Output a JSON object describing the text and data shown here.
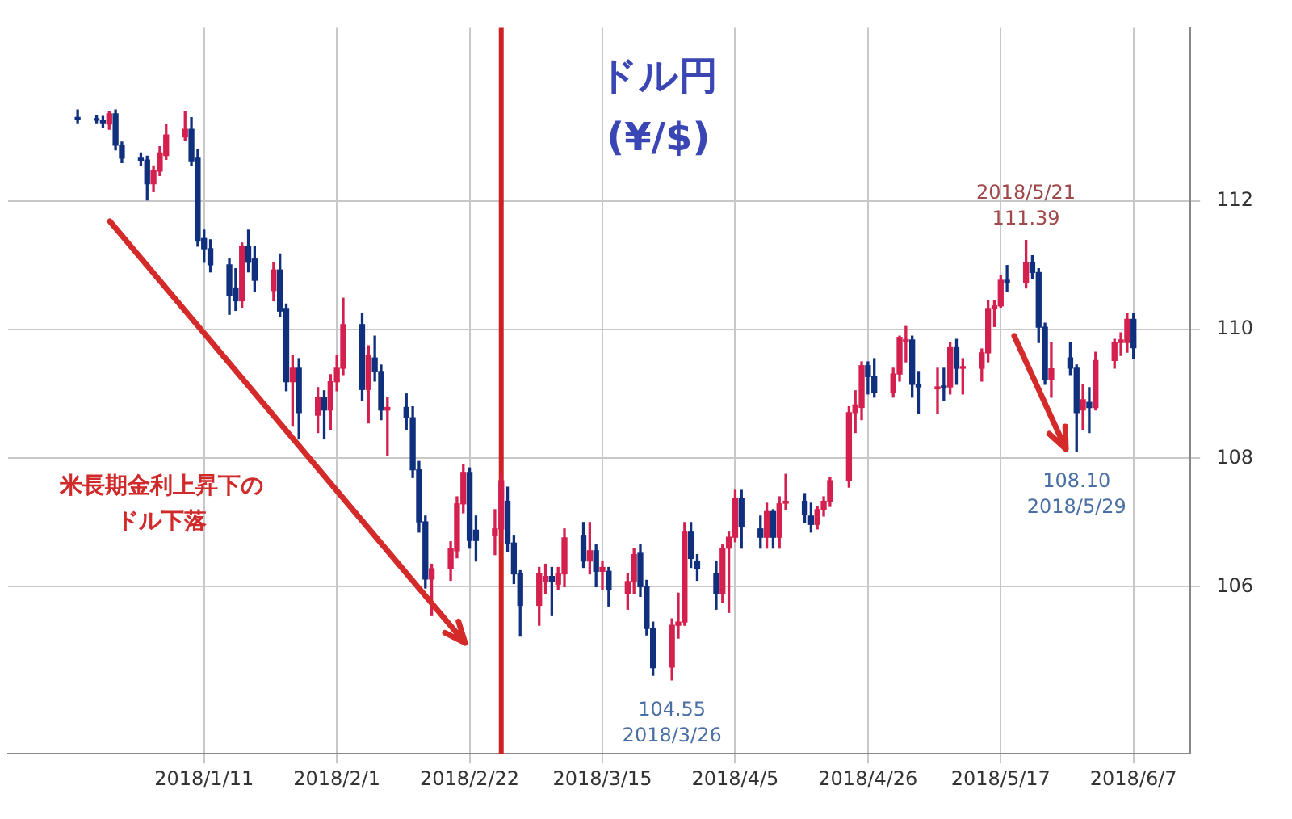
{
  "chart_data": {
    "type": "candlestick",
    "title": "ドル円",
    "subtitle": "(¥/$)",
    "annotations": [
      {
        "text": "2018/5/21\n111.39",
        "x": "2018-05-21",
        "y": 111.39
      },
      {
        "text": "108.10\n2018/5/29",
        "x": "2018-05-29",
        "y": 108.1
      },
      {
        "text": "104.55\n2018/3/26",
        "x": "2018-03-26",
        "y": 104.55
      },
      "米長期金利上昇下の",
      "ドル下落"
    ],
    "xlim": [
      "2017-12-11",
      "2018-06-16"
    ],
    "xticks": [
      {
        "value": "2018-01-11",
        "label": "2018/1/11"
      },
      {
        "value": "2018-02-01",
        "label": "2018/2/1"
      },
      {
        "value": "2018-02-22",
        "label": "2018/2/22"
      },
      {
        "value": "2018-03-15",
        "label": "2018/3/15"
      },
      {
        "value": "2018-04-05",
        "label": "2018/4/5"
      },
      {
        "value": "2018-04-26",
        "label": "2018/4/26"
      },
      {
        "value": "2018-05-17",
        "label": "2018/5/17"
      },
      {
        "value": "2018-06-07",
        "label": "2018/6/7"
      }
    ],
    "ylim": [
      103.4,
      114.7
    ],
    "yticks": [
      106,
      108,
      110,
      112
    ],
    "grid": true,
    "legend": false,
    "ref_lines": [
      {
        "axis": "x",
        "value": "2018-02-27",
        "color": "#cc2222"
      }
    ],
    "series": [
      {
        "color": "#d4204e",
        "x": [
          "2017-12-27",
          "2018-01-03",
          "2018-01-04",
          "2018-01-05",
          "2018-01-08",
          "2018-01-17",
          "2018-01-22",
          "2018-01-25",
          "2018-01-29",
          "2018-01-31",
          "2018-02-01",
          "2018-02-02",
          "2018-02-06",
          "2018-02-09",
          "2018-02-16",
          "2018-02-19",
          "2018-02-20",
          "2018-02-21",
          "2018-02-26",
          "2018-02-27",
          "2018-03-05",
          "2018-03-06",
          "2018-03-08",
          "2018-03-09",
          "2018-03-13",
          "2018-03-15",
          "2018-03-19",
          "2018-03-20",
          "2018-03-26",
          "2018-03-27",
          "2018-03-28",
          "2018-04-03",
          "2018-04-04",
          "2018-04-05",
          "2018-04-10",
          "2018-04-12",
          "2018-04-13",
          "2018-04-18",
          "2018-04-19",
          "2018-04-20",
          "2018-04-23",
          "2018-04-24",
          "2018-04-25",
          "2018-04-30",
          "2018-05-01",
          "2018-05-02",
          "2018-05-07",
          "2018-05-09",
          "2018-05-11",
          "2018-05-14",
          "2018-05-15",
          "2018-05-16",
          "2018-05-17",
          "2018-05-21",
          "2018-05-25",
          "2018-05-30",
          "2018-06-01",
          "2018-06-04",
          "2018-06-05",
          "2018-06-06"
        ],
        "ohlc": [
          [
            113.2,
            113.4,
            113.12,
            113.36
          ],
          [
            112.27,
            112.55,
            112.15,
            112.47
          ],
          [
            112.47,
            112.85,
            112.4,
            112.75
          ],
          [
            112.71,
            113.2,
            112.65,
            113.03
          ],
          [
            113.0,
            113.4,
            112.95,
            113.12
          ],
          [
            110.45,
            111.35,
            110.35,
            111.3
          ],
          [
            110.61,
            111.05,
            110.45,
            110.93
          ],
          [
            109.19,
            109.6,
            108.5,
            109.4
          ],
          [
            108.67,
            109.1,
            108.4,
            108.95
          ],
          [
            108.75,
            109.3,
            108.45,
            109.19
          ],
          [
            109.19,
            109.6,
            109.05,
            109.4
          ],
          [
            109.4,
            110.49,
            109.3,
            110.08
          ],
          [
            109.07,
            109.75,
            108.55,
            109.6
          ],
          [
            108.75,
            108.95,
            108.05,
            108.79
          ],
          [
            106.12,
            106.35,
            105.55,
            106.28
          ],
          [
            106.28,
            106.7,
            106.1,
            106.6
          ],
          [
            106.56,
            107.4,
            106.45,
            107.29
          ],
          [
            107.29,
            107.9,
            107.15,
            107.78
          ],
          [
            106.8,
            107.2,
            106.5,
            106.9
          ],
          [
            106.9,
            107.75,
            106.7,
            107.65
          ],
          [
            105.71,
            106.3,
            105.4,
            106.2
          ],
          [
            106.08,
            106.35,
            105.9,
            106.16
          ],
          [
            106.04,
            106.3,
            105.95,
            106.2
          ],
          [
            106.2,
            106.9,
            106.0,
            106.76
          ],
          [
            106.4,
            107.0,
            106.2,
            106.56
          ],
          [
            106.24,
            106.4,
            105.95,
            106.3
          ],
          [
            105.9,
            106.2,
            105.65,
            106.08
          ],
          [
            106.08,
            106.6,
            105.9,
            106.5
          ],
          [
            104.75,
            105.5,
            104.55,
            105.4
          ],
          [
            105.4,
            105.9,
            105.2,
            105.45
          ],
          [
            105.45,
            107.0,
            105.4,
            106.85
          ],
          [
            105.9,
            106.65,
            105.75,
            106.6
          ],
          [
            106.6,
            106.85,
            105.6,
            106.77
          ],
          [
            106.77,
            107.5,
            106.7,
            107.37
          ],
          [
            106.77,
            107.3,
            106.6,
            107.17
          ],
          [
            106.77,
            107.4,
            106.6,
            107.29
          ],
          [
            107.3,
            107.75,
            107.2,
            107.33
          ],
          [
            106.97,
            107.25,
            106.9,
            107.2
          ],
          [
            107.2,
            107.4,
            107.1,
            107.33
          ],
          [
            107.33,
            107.7,
            107.25,
            107.65
          ],
          [
            107.65,
            108.8,
            107.55,
            108.71
          ],
          [
            108.71,
            109.05,
            108.4,
            108.83
          ],
          [
            108.79,
            109.5,
            108.6,
            109.44
          ],
          [
            109.03,
            109.4,
            108.95,
            109.31
          ],
          [
            109.31,
            109.9,
            109.2,
            109.88
          ],
          [
            109.82,
            110.05,
            109.5,
            109.84
          ],
          [
            109.08,
            109.4,
            108.7,
            109.11
          ],
          [
            109.11,
            109.8,
            109.0,
            109.72
          ],
          [
            109.4,
            109.55,
            109.0,
            109.42
          ],
          [
            109.4,
            109.7,
            109.2,
            109.64
          ],
          [
            109.64,
            110.45,
            109.5,
            110.33
          ],
          [
            110.33,
            110.45,
            110.05,
            110.37
          ],
          [
            110.37,
            110.85,
            110.35,
            110.77
          ],
          [
            110.73,
            111.39,
            110.65,
            111.05
          ],
          [
            109.23,
            109.8,
            108.95,
            109.39
          ],
          [
            108.75,
            109.15,
            108.45,
            108.91
          ],
          [
            108.79,
            109.65,
            108.75,
            109.52
          ],
          [
            109.52,
            109.85,
            109.4,
            109.8
          ],
          [
            109.8,
            109.95,
            109.6,
            109.84
          ],
          [
            109.8,
            110.25,
            109.65,
            110.16
          ]
        ]
      },
      {
        "color": "#10307e",
        "x": [
          "2017-12-22",
          "2017-12-25",
          "2017-12-26",
          "2017-12-28",
          "2017-12-29",
          "2018-01-01",
          "2018-01-02",
          "2018-01-09",
          "2018-01-10",
          "2018-01-11",
          "2018-01-12",
          "2018-01-15",
          "2018-01-16",
          "2018-01-18",
          "2018-01-19",
          "2018-01-23",
          "2018-01-24",
          "2018-01-26",
          "2018-01-30",
          "2018-02-05",
          "2018-02-07",
          "2018-02-08",
          "2018-02-12",
          "2018-02-13",
          "2018-02-14",
          "2018-02-15",
          "2018-02-22",
          "2018-02-23",
          "2018-02-28",
          "2018-03-01",
          "2018-03-02",
          "2018-03-07",
          "2018-03-12",
          "2018-03-14",
          "2018-03-16",
          "2018-03-21",
          "2018-03-22",
          "2018-03-23",
          "2018-03-29",
          "2018-03-30",
          "2018-04-02",
          "2018-04-06",
          "2018-04-09",
          "2018-04-11",
          "2018-04-16",
          "2018-04-17",
          "2018-04-26",
          "2018-04-27",
          "2018-05-03",
          "2018-05-04",
          "2018-05-08",
          "2018-05-10",
          "2018-05-18",
          "2018-05-22",
          "2018-05-23",
          "2018-05-24",
          "2018-05-28",
          "2018-05-29",
          "2018-05-31",
          "2018-06-07"
        ],
        "ohlc": [
          [
            113.3,
            113.42,
            113.22,
            113.28
          ],
          [
            113.28,
            113.34,
            113.22,
            113.26
          ],
          [
            113.26,
            113.32,
            113.15,
            113.22
          ],
          [
            113.36,
            113.42,
            112.8,
            112.87
          ],
          [
            112.87,
            112.92,
            112.6,
            112.67
          ],
          [
            112.67,
            112.75,
            112.55,
            112.64
          ],
          [
            112.64,
            112.7,
            112.02,
            112.27
          ],
          [
            113.12,
            113.3,
            112.55,
            112.63
          ],
          [
            112.67,
            112.8,
            111.3,
            111.38
          ],
          [
            111.42,
            111.55,
            111.05,
            111.26
          ],
          [
            111.26,
            111.4,
            110.9,
            111.01
          ],
          [
            111.01,
            111.1,
            110.24,
            110.53
          ],
          [
            110.65,
            110.95,
            110.3,
            110.45
          ],
          [
            111.3,
            111.55,
            110.9,
            111.05
          ],
          [
            111.1,
            111.3,
            110.6,
            110.77
          ],
          [
            110.93,
            111.18,
            110.2,
            110.29
          ],
          [
            110.33,
            110.4,
            109.05,
            109.19
          ],
          [
            109.4,
            109.55,
            108.3,
            108.71
          ],
          [
            108.95,
            109.05,
            108.3,
            108.75
          ],
          [
            110.08,
            110.25,
            108.9,
            109.07
          ],
          [
            109.56,
            109.9,
            109.2,
            109.35
          ],
          [
            109.35,
            109.45,
            108.6,
            108.75
          ],
          [
            108.79,
            109.0,
            108.45,
            108.63
          ],
          [
            108.63,
            108.8,
            107.7,
            107.82
          ],
          [
            107.82,
            107.95,
            106.85,
            107.01
          ],
          [
            107.01,
            107.1,
            105.98,
            106.12
          ],
          [
            107.78,
            107.85,
            106.6,
            106.72
          ],
          [
            106.88,
            107.1,
            106.4,
            106.72
          ],
          [
            107.33,
            107.55,
            106.55,
            106.68
          ],
          [
            106.68,
            106.8,
            106.05,
            106.2
          ],
          [
            106.2,
            106.25,
            105.23,
            105.71
          ],
          [
            106.16,
            106.3,
            105.55,
            106.08
          ],
          [
            106.8,
            107.0,
            106.3,
            106.4
          ],
          [
            106.56,
            106.65,
            106.0,
            106.24
          ],
          [
            106.24,
            106.3,
            105.7,
            105.95
          ],
          [
            106.52,
            106.65,
            105.85,
            106.0
          ],
          [
            106.0,
            106.1,
            105.25,
            105.35
          ],
          [
            105.35,
            105.45,
            104.62,
            104.74
          ],
          [
            106.85,
            107.0,
            106.3,
            106.44
          ],
          [
            106.4,
            106.5,
            106.1,
            106.28
          ],
          [
            106.2,
            106.4,
            105.65,
            105.9
          ],
          [
            107.37,
            107.5,
            106.6,
            106.93
          ],
          [
            106.9,
            107.1,
            106.6,
            106.77
          ],
          [
            107.17,
            107.2,
            106.6,
            106.77
          ],
          [
            107.33,
            107.45,
            107.0,
            107.13
          ],
          [
            107.1,
            107.3,
            106.85,
            106.97
          ],
          [
            109.44,
            109.5,
            109.0,
            109.27
          ],
          [
            109.27,
            109.55,
            108.95,
            109.03
          ],
          [
            109.84,
            109.9,
            108.95,
            109.15
          ],
          [
            109.15,
            109.35,
            108.7,
            109.11
          ],
          [
            109.11,
            109.4,
            108.9,
            109.1
          ],
          [
            109.72,
            109.85,
            109.15,
            109.4
          ],
          [
            110.77,
            111.0,
            110.6,
            110.73
          ],
          [
            111.05,
            111.15,
            110.8,
            110.89
          ],
          [
            110.89,
            110.95,
            109.8,
            110.04
          ],
          [
            110.04,
            110.1,
            109.15,
            109.23
          ],
          [
            109.56,
            109.8,
            109.3,
            109.4
          ],
          [
            109.4,
            109.45,
            108.1,
            108.71
          ],
          [
            108.87,
            109.1,
            108.4,
            108.79
          ],
          [
            110.16,
            110.25,
            109.55,
            109.72
          ]
        ]
      }
    ]
  }
}
